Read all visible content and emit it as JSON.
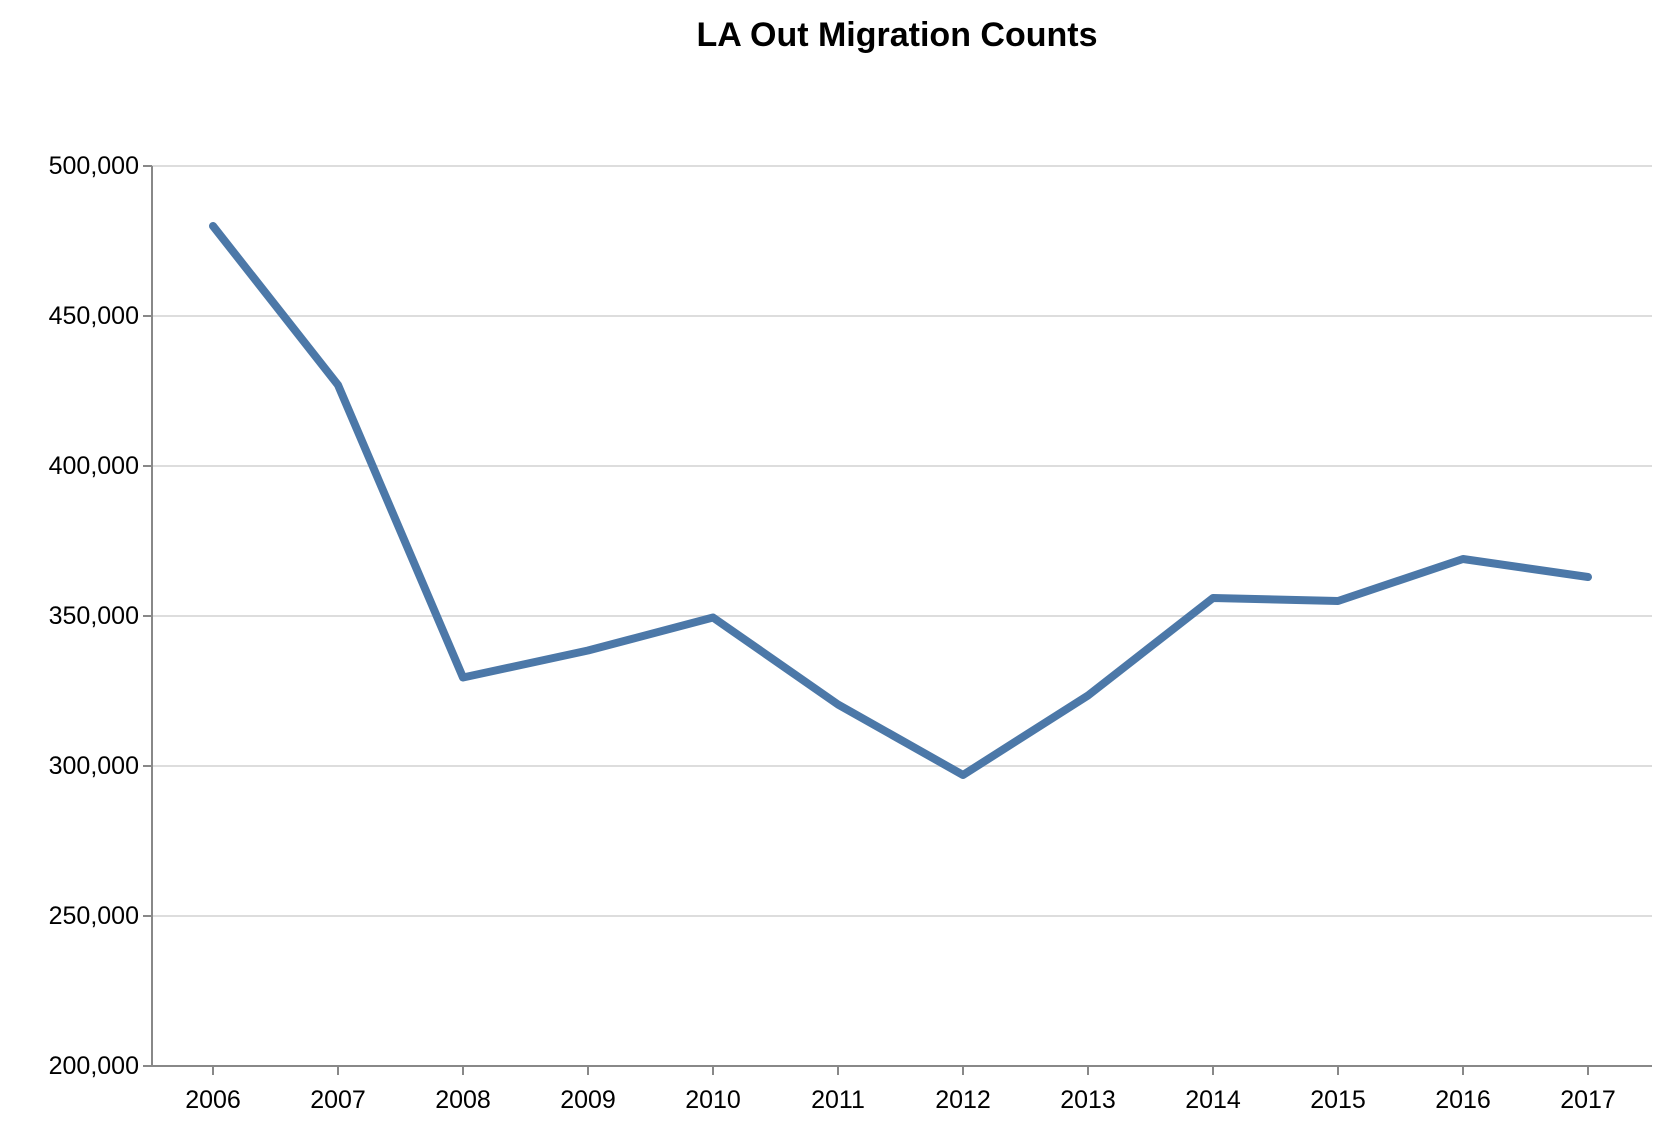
{
  "chart_data": {
    "type": "line",
    "title": "LA Out Migration Counts",
    "xlabel": "",
    "ylabel": "",
    "x": [
      "2006",
      "2007",
      "2008",
      "2009",
      "2010",
      "2011",
      "2012",
      "2013",
      "2014",
      "2015",
      "2016",
      "2017"
    ],
    "series": [
      {
        "values": [
          480000,
          427000,
          329500,
          338500,
          349500,
          320500,
          297000,
          323500,
          356000,
          355000,
          369000,
          363000
        ]
      }
    ],
    "ylim": [
      200000,
      500000
    ],
    "y_ticks": [
      200000,
      250000,
      300000,
      350000,
      400000,
      450000,
      500000
    ],
    "y_tick_labels": [
      "200,000",
      "250,000",
      "300,000",
      "350,000",
      "400,000",
      "450,000",
      "500,000"
    ],
    "grid": true,
    "legend": "none",
    "colors": {
      "line": "#4c78a8",
      "grid": "#dddddd",
      "axis": "#888888"
    }
  }
}
